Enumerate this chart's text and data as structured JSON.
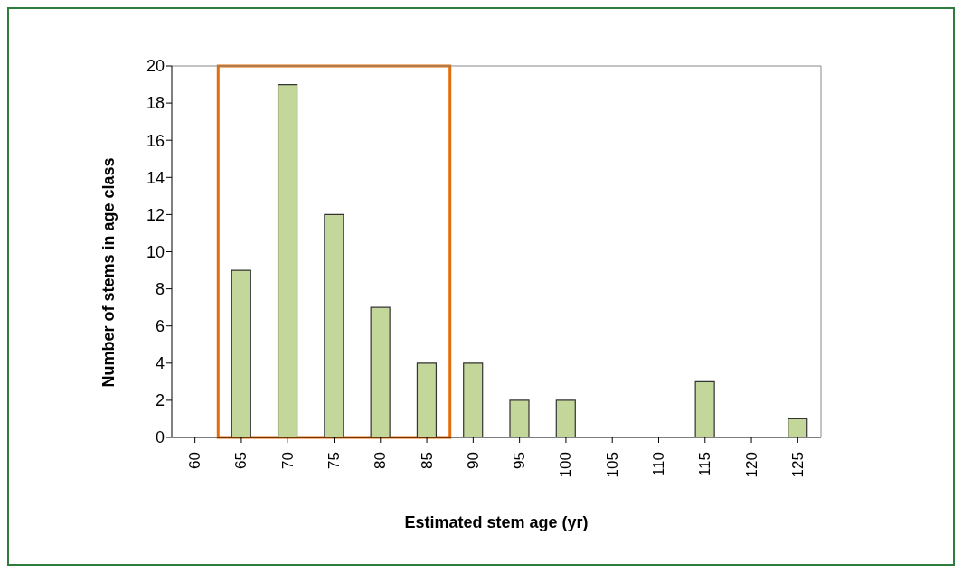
{
  "chart_data": {
    "type": "bar",
    "xlabel": "Estimated stem age (yr)",
    "ylabel": "Number of stems in age class",
    "categories": [
      "60",
      "65",
      "70",
      "75",
      "80",
      "85",
      "90",
      "95",
      "100",
      "105",
      "110",
      "115",
      "120",
      "125"
    ],
    "values": [
      0,
      9,
      19,
      12,
      7,
      4,
      4,
      2,
      2,
      0,
      0,
      3,
      0,
      1
    ],
    "color": "#c4d79b",
    "ylim": [
      0,
      20
    ],
    "yticks": [
      0,
      2,
      4,
      6,
      8,
      10,
      12,
      14,
      16,
      18,
      20
    ],
    "grid": false
  }
}
